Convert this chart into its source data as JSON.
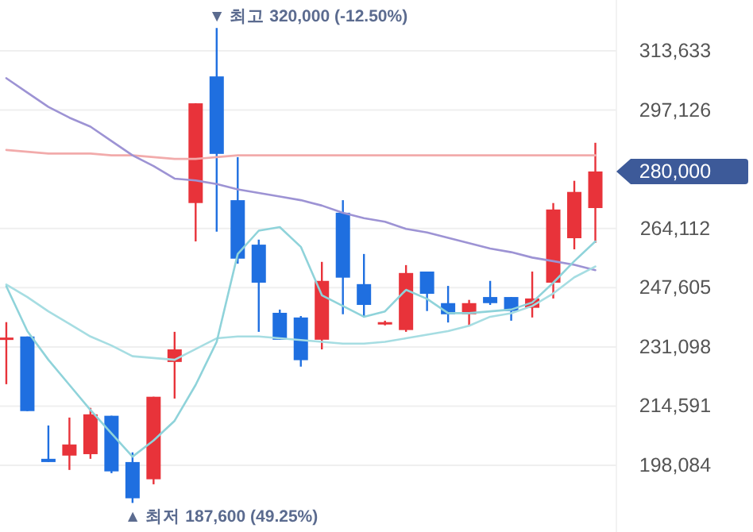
{
  "chart_data": {
    "type": "candlestick",
    "categories": [
      null,
      null,
      null,
      null,
      null,
      null,
      null,
      null,
      null,
      null,
      null,
      null,
      null,
      null,
      null,
      null,
      null,
      null,
      null,
      null,
      null,
      null,
      null,
      null,
      null,
      null,
      null,
      null,
      null
    ],
    "ohlc": [
      [
        233500,
        238000,
        220700,
        233700
      ],
      [
        234000,
        234000,
        213200,
        213200
      ],
      [
        199900,
        209200,
        199000,
        199000
      ],
      [
        200800,
        211400,
        196800,
        203900
      ],
      [
        201200,
        214100,
        199900,
        212300
      ],
      [
        211900,
        211900,
        195900,
        196400
      ],
      [
        199000,
        201700,
        187600,
        188900
      ],
      [
        194200,
        217200,
        192800,
        217200
      ],
      [
        226900,
        235300,
        216700,
        230400
      ],
      [
        271200,
        299000,
        260500,
        299000
      ],
      [
        306500,
        320000,
        263200,
        284900
      ],
      [
        272000,
        284000,
        254300,
        255700
      ],
      [
        259600,
        261000,
        235300,
        249000
      ],
      [
        240600,
        241500,
        233100,
        233100
      ],
      [
        239300,
        239700,
        225600,
        227400
      ],
      [
        233100,
        254800,
        230400,
        249500
      ],
      [
        268500,
        272000,
        240200,
        250400
      ],
      [
        248600,
        257000,
        239300,
        242800
      ],
      [
        237500,
        238400,
        237100,
        238000
      ],
      [
        235800,
        253900,
        235300,
        251700
      ],
      [
        252100,
        252100,
        241100,
        245900
      ],
      [
        243300,
        248100,
        237900,
        240200
      ],
      [
        240200,
        244200,
        237100,
        243300
      ],
      [
        245000,
        249500,
        242800,
        243300
      ],
      [
        245000,
        245000,
        238400,
        241100
      ],
      [
        242000,
        252100,
        239300,
        244600
      ],
      [
        249000,
        271200,
        244600,
        269400
      ],
      [
        261400,
        277400,
        258300,
        274300
      ],
      [
        269800,
        288000,
        260100,
        280000
      ]
    ],
    "colors": [
      "#e8333a",
      "#1f6fe0",
      "#1f6fe0",
      "#e8333a",
      "#e8333a",
      "#1f6fe0",
      "#1f6fe0",
      "#e8333a",
      "#e8333a",
      "#e8333a",
      "#1f6fe0",
      "#1f6fe0",
      "#1f6fe0",
      "#1f6fe0",
      "#1f6fe0",
      "#e8333a",
      "#1f6fe0",
      "#1f6fe0",
      "#e8333a",
      "#e8333a",
      "#1f6fe0",
      "#1f6fe0",
      "#e8333a",
      "#1f6fe0",
      "#1f6fe0",
      "#e8333a",
      "#e8333a",
      "#e8333a",
      "#e8333a"
    ],
    "series": [
      {
        "type": "line",
        "color": "#f2abab",
        "values": [
          286000,
          285500,
          285000,
          285000,
          285000,
          284500,
          284500,
          284000,
          283500,
          283500,
          284000,
          284500,
          284500,
          284500,
          284500,
          284500,
          284500,
          284500,
          284500,
          284500,
          284500,
          284500,
          284500,
          284500,
          284500,
          284500,
          284500,
          284500,
          284500
        ]
      },
      {
        "type": "line",
        "color": "#9d93d4",
        "values": [
          306000,
          302000,
          298000,
          295000,
          292500,
          288500,
          284500,
          281500,
          278000,
          277500,
          276500,
          275000,
          274000,
          273000,
          272000,
          270500,
          268500,
          267000,
          266000,
          264000,
          263000,
          261500,
          260000,
          258500,
          257500,
          256000,
          255000,
          254000,
          252500
        ]
      },
      {
        "type": "line",
        "color": "#a6dde2",
        "values": [
          248500,
          245000,
          241000,
          237500,
          234000,
          231500,
          228500,
          228000,
          227500,
          230500,
          233500,
          234000,
          234000,
          233500,
          233000,
          232500,
          232000,
          232000,
          232500,
          233500,
          234500,
          235500,
          237000,
          239500,
          240500,
          242500,
          246000,
          250500,
          253500
        ]
      },
      {
        "type": "line",
        "color": "#8fd3da",
        "values": [
          248000,
          235500,
          227500,
          220500,
          213500,
          207000,
          200500,
          205000,
          210500,
          220500,
          232500,
          257000,
          263500,
          264500,
          259000,
          245500,
          242500,
          239500,
          241000,
          247000,
          244500,
          240500,
          240500,
          241000,
          241500,
          243500,
          249000,
          255000,
          260500
        ]
      }
    ],
    "ylim": [
      179500,
      327800
    ],
    "yticks": [
      {
        "value": 198084,
        "label": "198,084"
      },
      {
        "value": 214591,
        "label": "214,591"
      },
      {
        "value": 231098,
        "label": "231,098"
      },
      {
        "value": 247605,
        "label": "247,605"
      },
      {
        "value": 264112,
        "label": "264,112"
      },
      {
        "value": 297126,
        "label": "297,126"
      },
      {
        "value": 313633,
        "label": "313,633"
      }
    ],
    "grid": "y",
    "annotations": [
      "▼ 최고 320,000 (-12.50%)",
      "▲ 최저 187,600 (49.25%)",
      "280,000"
    ]
  }
}
